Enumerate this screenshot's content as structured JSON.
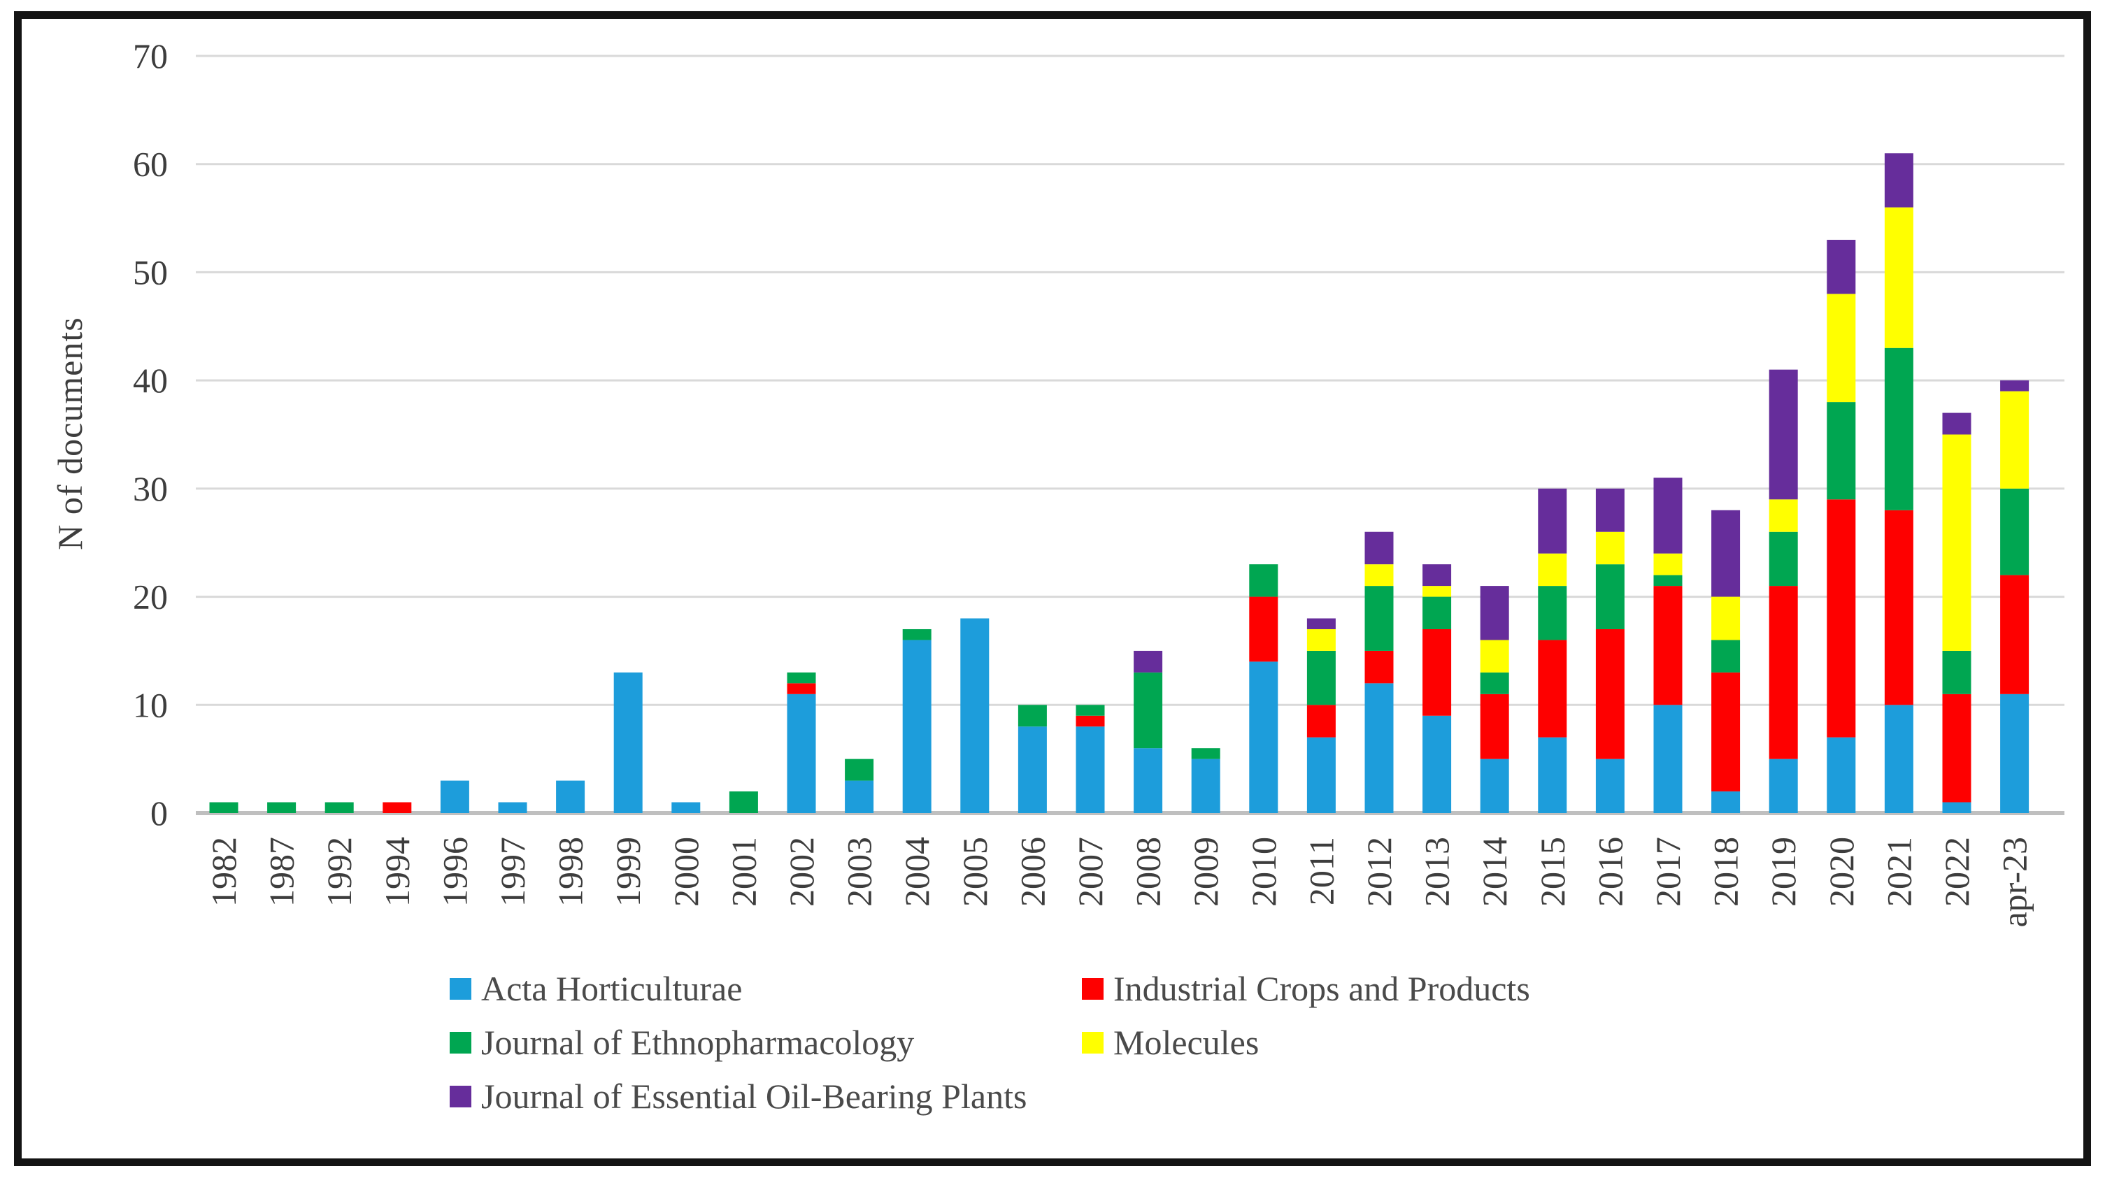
{
  "figure": {
    "background": "#ffffff",
    "border_color": "#141414"
  },
  "chart_data": {
    "type": "bar",
    "stacked": true,
    "title": "",
    "xlabel": "",
    "ylabel": "N of documents",
    "ylim": [
      0,
      70
    ],
    "yticks": [
      0,
      10,
      20,
      30,
      40,
      50,
      60,
      70
    ],
    "grid": "horizontal",
    "grid_color": "#d9d9d9",
    "axis_line_color": "#bfbfbf",
    "tick_label_color": "#3d3d3d",
    "legend_position": "bottom",
    "categories": [
      "1982",
      "1987",
      "1992",
      "1994",
      "1996",
      "1997",
      "1998",
      "1999",
      "2000",
      "2001",
      "2002",
      "2003",
      "2004",
      "2005",
      "2006",
      "2007",
      "2008",
      "2009",
      "2010",
      "2011",
      "2012",
      "2013",
      "2014",
      "2015",
      "2016",
      "2017",
      "2018",
      "2019",
      "2020",
      "2021",
      "2022",
      "apr-23"
    ],
    "series": [
      {
        "name": "Acta Horticulturae",
        "color": "#1d9ddb",
        "values": [
          0,
          0,
          0,
          0,
          3,
          1,
          3,
          13,
          1,
          0,
          11,
          3,
          16,
          18,
          8,
          8,
          6,
          5,
          14,
          7,
          12,
          9,
          5,
          7,
          5,
          10,
          2,
          5,
          7,
          10,
          1,
          11
        ]
      },
      {
        "name": "Industrial Crops and Products",
        "color": "#fe0000",
        "values": [
          0,
          0,
          0,
          1,
          0,
          0,
          0,
          0,
          0,
          0,
          1,
          0,
          0,
          0,
          0,
          1,
          0,
          0,
          6,
          3,
          3,
          8,
          6,
          9,
          12,
          11,
          11,
          16,
          22,
          18,
          10,
          11
        ]
      },
      {
        "name": "Journal of Ethnopharmacology",
        "color": "#00a651",
        "values": [
          1,
          1,
          1,
          0,
          0,
          0,
          0,
          0,
          0,
          2,
          1,
          2,
          1,
          0,
          2,
          1,
          7,
          1,
          3,
          5,
          6,
          3,
          2,
          5,
          6,
          1,
          3,
          5,
          9,
          15,
          4,
          8
        ]
      },
      {
        "name": "Molecules",
        "color": "#ffff00",
        "values": [
          0,
          0,
          0,
          0,
          0,
          0,
          0,
          0,
          0,
          0,
          0,
          0,
          0,
          0,
          0,
          0,
          0,
          0,
          0,
          2,
          2,
          1,
          3,
          3,
          3,
          2,
          4,
          3,
          10,
          13,
          20,
          9
        ]
      },
      {
        "name": "Journal of Essential Oil-Bearing Plants",
        "color": "#662d9b",
        "values": [
          0,
          0,
          0,
          0,
          0,
          0,
          0,
          0,
          0,
          0,
          0,
          0,
          0,
          0,
          0,
          0,
          2,
          0,
          0,
          1,
          3,
          2,
          5,
          6,
          4,
          7,
          8,
          12,
          5,
          5,
          2,
          1
        ]
      }
    ]
  }
}
